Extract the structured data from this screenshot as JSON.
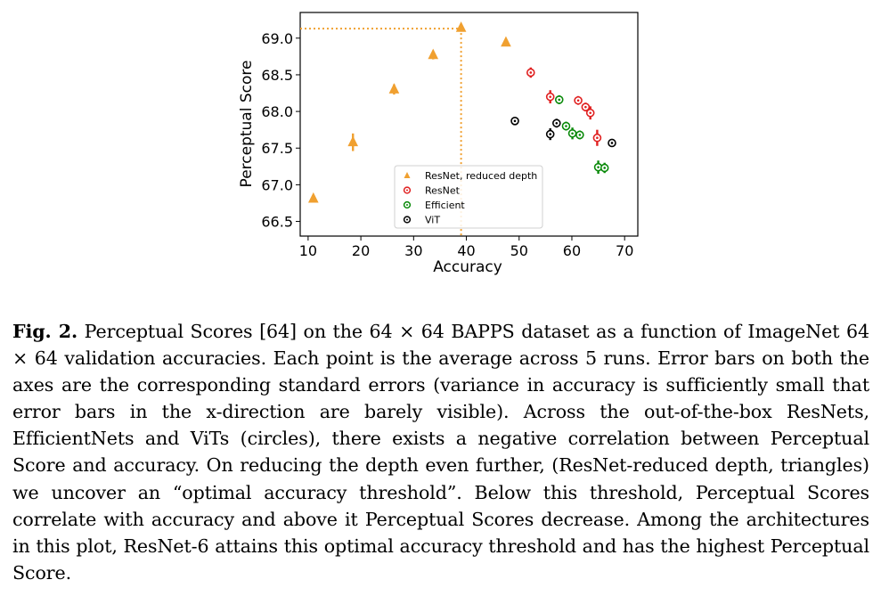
{
  "chart_data": {
    "type": "scatter",
    "xlabel": "Accuracy",
    "ylabel": "Perceptual Score",
    "xlim": [
      8.5,
      72.5
    ],
    "ylim": [
      66.3,
      69.35
    ],
    "xticks": [
      10,
      20,
      30,
      40,
      50,
      60,
      70
    ],
    "yticks": [
      66.5,
      67.0,
      67.5,
      68.0,
      68.5,
      69.0
    ],
    "xtick_labels": [
      "10",
      "20",
      "30",
      "40",
      "50",
      "60",
      "70"
    ],
    "ytick_labels": [
      "66.5",
      "67.0",
      "67.5",
      "68.0",
      "68.5",
      "69.0"
    ],
    "legend_location": "lower-center",
    "optimal_threshold": {
      "x": 39.0,
      "y": 69.13,
      "style": "dotted"
    },
    "series": [
      {
        "name": "ResNet, reduced depth",
        "marker": "triangle",
        "color": "#f0a030",
        "points": [
          {
            "x": 11.0,
            "y": 66.81,
            "err": 0.05
          },
          {
            "x": 18.5,
            "y": 67.58,
            "err": 0.12
          },
          {
            "x": 26.3,
            "y": 68.3,
            "err": 0.07
          },
          {
            "x": 33.7,
            "y": 68.77,
            "err": 0.06
          },
          {
            "x": 39.0,
            "y": 69.14,
            "err": 0.05
          },
          {
            "x": 47.5,
            "y": 68.94,
            "err": 0.05
          }
        ]
      },
      {
        "name": "ResNet",
        "marker": "circle",
        "color": "#e02020",
        "points": [
          {
            "x": 52.2,
            "y": 68.53,
            "err": 0.07
          },
          {
            "x": 55.9,
            "y": 68.2,
            "err": 0.09
          },
          {
            "x": 61.2,
            "y": 68.15,
            "err": 0.06
          },
          {
            "x": 62.6,
            "y": 68.06,
            "err": 0.06
          },
          {
            "x": 63.5,
            "y": 67.98,
            "err": 0.09
          },
          {
            "x": 64.8,
            "y": 67.64,
            "err": 0.11
          }
        ]
      },
      {
        "name": "Efficient",
        "marker": "circle",
        "color": "#0a8a0a",
        "points": [
          {
            "x": 57.6,
            "y": 68.16,
            "err": 0.06
          },
          {
            "x": 58.9,
            "y": 67.8,
            "err": 0.06
          },
          {
            "x": 60.1,
            "y": 67.7,
            "err": 0.08
          },
          {
            "x": 61.5,
            "y": 67.68,
            "err": 0.06
          },
          {
            "x": 65.0,
            "y": 67.24,
            "err": 0.09
          },
          {
            "x": 66.2,
            "y": 67.23,
            "err": 0.07
          }
        ]
      },
      {
        "name": "ViT",
        "marker": "circle",
        "color": "#000000",
        "points": [
          {
            "x": 49.2,
            "y": 67.87,
            "err": 0.04
          },
          {
            "x": 55.9,
            "y": 67.69,
            "err": 0.08
          },
          {
            "x": 57.1,
            "y": 67.84,
            "err": 0.06
          },
          {
            "x": 67.6,
            "y": 67.57,
            "err": 0.05
          }
        ]
      }
    ]
  },
  "caption": {
    "label": "Fig. 2.",
    "text": "Perceptual Scores [64] on the 64 × 64 BAPPS dataset as a function of ImageNet 64 × 64 validation accuracies. Each point is the average across 5 runs. Error bars on both the axes are the corresponding standard errors (variance in accuracy is sufficiently small that error bars in the x-direction are barely visible). Across the out-of-the-box ResNets, EfficientNets and ViTs (circles), there exists a negative correlation between Perceptual Score and accuracy. On reducing the depth even further, (ResNet-reduced depth, triangles) we uncover an “optimal accuracy threshold”. Below this threshold, Perceptual Scores correlate with accuracy and above it Perceptual Scores decrease. Among the architectures in this plot, ResNet-6 attains this optimal accuracy threshold and has the highest Perceptual Score."
  }
}
